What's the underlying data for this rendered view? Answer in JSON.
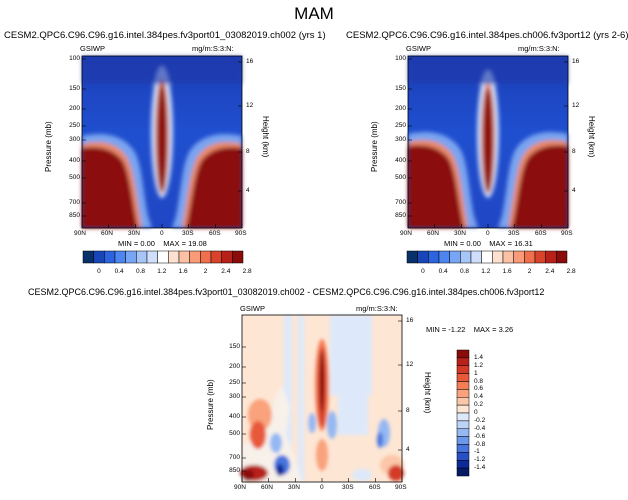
{
  "page_title": "MAM",
  "chart_data": [
    {
      "type": "heatmap",
      "title": "CESM2.QPC6.C96.C96.g16.intel.384pes.fv3port01_03082019.ch002 (yrs 1)",
      "variable": "GSIWP",
      "units": "mg/m:S:3:N:",
      "ylabel": "Pressure (mb)",
      "y2label": "Height (km)",
      "x_ticks": [
        "90N",
        "60N",
        "30N",
        "0",
        "30S",
        "60S",
        "90S"
      ],
      "y_ticks": [
        "100",
        "150",
        "200",
        "250",
        "300",
        "400",
        "500",
        "700",
        "850"
      ],
      "y2_ticks": [
        "16",
        "12",
        "8",
        "4"
      ],
      "stats": {
        "min": "0.00",
        "max": "19.08"
      },
      "stats_text": {
        "min_label": "MIN =",
        "min": "0.00",
        "max_label": "MAX =",
        "max": "19.08"
      }
    },
    {
      "type": "heatmap",
      "title": "CESM2.QPC6.C96.C96.g16.intel.384pes.ch006.fv3port12 (yrs 2-6)",
      "variable": "GSIWP",
      "units": "mg/m:S:3:N:",
      "ylabel": "Pressure (mb)",
      "y2label": "Height (km)",
      "x_ticks": [
        "90N",
        "60N",
        "30N",
        "0",
        "30S",
        "60S",
        "90S"
      ],
      "y_ticks": [
        "100",
        "150",
        "200",
        "250",
        "300",
        "400",
        "500",
        "700",
        "850"
      ],
      "y2_ticks": [
        "16",
        "12",
        "8",
        "4"
      ],
      "stats": {
        "min": "0.00",
        "max": "16.31"
      },
      "stats_text": {
        "min_label": "MIN =",
        "min": "0.00",
        "max_label": "MAX =",
        "max": "16.31"
      }
    },
    {
      "type": "heatmap",
      "title": "CESM2.QPC6.C96.C96.g16.intel.384pes.fv3port01_03082019.ch002 - CESM2.QPC6.C96.C96.g16.intel.384pes.ch006.fv3port12",
      "variable": "GSIWP",
      "units": "mg/m:S:3:N:",
      "ylabel": "Pressure (mb)",
      "y2label": "Height (km)",
      "x_ticks": [
        "90N",
        "60N",
        "30N",
        "0",
        "30S",
        "60S",
        "90S"
      ],
      "y_ticks": [
        "150",
        "200",
        "250",
        "300",
        "400",
        "500",
        "700",
        "850"
      ],
      "y2_ticks": [
        "16",
        "12",
        "8",
        "4"
      ],
      "stats": {
        "min": "-1.22",
        "max": "3.26"
      },
      "stats_text": {
        "min_label": "MIN =",
        "min": "-1.22",
        "max_label": "MAX =",
        "max": "3.26"
      }
    }
  ],
  "colorbar_main": {
    "labels": [
      "0",
      "0.4",
      "0.8",
      "1.2",
      "1.6",
      "2",
      "2.4",
      "2.8"
    ],
    "colors": [
      "#08306b",
      "#1846b8",
      "#2c64e0",
      "#4d86f0",
      "#78a6f5",
      "#a6c6f8",
      "#cfdffb",
      "#ffffff",
      "#fde0d0",
      "#fcc0a4",
      "#f99b78",
      "#f0704e",
      "#d9432c",
      "#b8201a",
      "#8b0a0a"
    ]
  },
  "colorbar_diff": {
    "labels": [
      "1.4",
      "1.2",
      "1",
      "0.8",
      "0.6",
      "0.4",
      "0.2",
      "0",
      "-0.2",
      "-0.4",
      "-0.6",
      "-0.8",
      "-1",
      "-1.2",
      "-1.4"
    ],
    "colors": [
      "#8b0a0a",
      "#b8201a",
      "#d33a26",
      "#e8583a",
      "#f47d56",
      "#f9a27c",
      "#fcc6a8",
      "#fde6d4",
      "#dde9fb",
      "#bcd4f8",
      "#94b8f4",
      "#6c98ec",
      "#4675de",
      "#2850c6",
      "#0e2a99",
      "#061a66"
    ]
  }
}
